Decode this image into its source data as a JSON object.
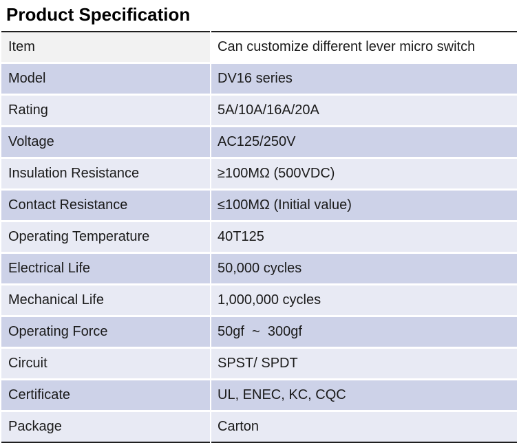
{
  "title": "Product Specification",
  "colors": {
    "band_dark": "#CDD2E8",
    "band_light": "#E8EAF4",
    "header_label_bg": "#F2F2F2",
    "header_value_bg": "#FFFFFF",
    "table_border": "#1F1F1F",
    "text": "#1A1A1A",
    "title_text": "#000000"
  },
  "table": {
    "columns": [
      "item",
      "specification"
    ],
    "rows": [
      {
        "label": "Item",
        "value": "Can customize different lever micro switch"
      },
      {
        "label": "Model",
        "value": "DV16 series"
      },
      {
        "label": "Rating",
        "value": "5A/10A/16A/20A"
      },
      {
        "label": "Voltage",
        "value": "AC125/250V"
      },
      {
        "label": "Insulation Resistance",
        "value": "≥100MΩ (500VDC)"
      },
      {
        "label": "Contact Resistance",
        "value": "≤100MΩ (Initial value)"
      },
      {
        "label": "Operating Temperature",
        "value": "40T125"
      },
      {
        "label": "Electrical Life",
        "value": "50,000 cycles"
      },
      {
        "label": "Mechanical Life",
        "value": "1,000,000 cycles"
      },
      {
        "label": "Operating Force",
        "value": "50gf  ~  300gf"
      },
      {
        "label": "Circuit",
        "value": "SPST/ SPDT"
      },
      {
        "label": "Certificate",
        "value": "UL, ENEC, KC, CQC"
      },
      {
        "label": "Package",
        "value": "Carton"
      }
    ]
  }
}
